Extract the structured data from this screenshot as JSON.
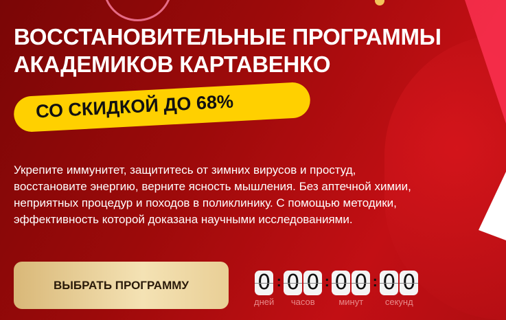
{
  "hero": {
    "title_line1": "ВОССТАНОВИТЕЛЬНЫЕ ПРОГРАММЫ",
    "title_line2": "АКАДЕМИКОВ КАРТАВЕНКО",
    "badge": "СО СКИДКОЙ ДО 68%",
    "description": "Укрепите иммунитет, защититесь от зимних вирусов и простуд, восстановите энергию, верните ясность мышления. Без аптечной химии, неприятных процедур и походов в поликлинику. С помощью методики, эффективность которой доказана научными исследованиями.",
    "cta": "ВЫБРАТЬ ПРОГРАММУ"
  },
  "timer": {
    "days": [
      "0"
    ],
    "hours": [
      "0",
      "0"
    ],
    "minutes": [
      "0",
      "0"
    ],
    "seconds": [
      "0",
      "0"
    ],
    "labels": {
      "days": "дней",
      "hours": "часов",
      "minutes": "минут",
      "seconds": "секунд"
    },
    "separator": ":"
  },
  "colors": {
    "accent_yellow": "#ffd000",
    "background_red": "#a00a0a",
    "button_gold": "#e9cf96"
  }
}
